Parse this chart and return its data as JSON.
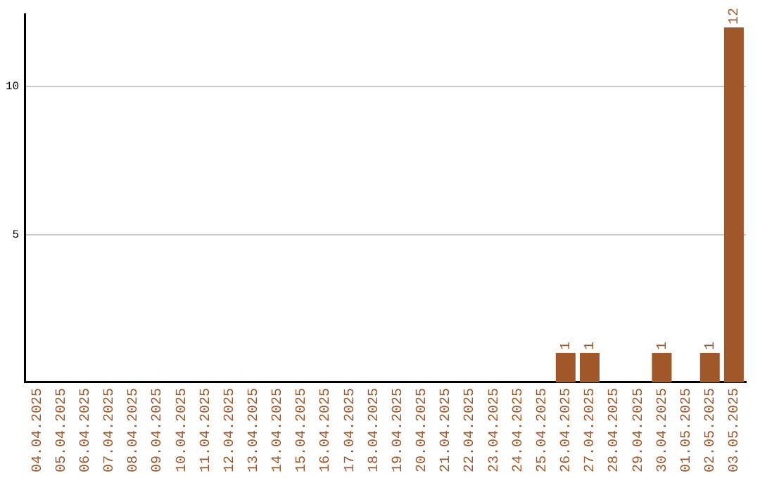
{
  "chart_data": {
    "type": "bar",
    "categories": [
      "04.04.2025",
      "05.04.2025",
      "06.04.2025",
      "07.04.2025",
      "08.04.2025",
      "09.04.2025",
      "10.04.2025",
      "11.04.2025",
      "12.04.2025",
      "13.04.2025",
      "14.04.2025",
      "15.04.2025",
      "16.04.2025",
      "17.04.2025",
      "18.04.2025",
      "19.04.2025",
      "20.04.2025",
      "21.04.2025",
      "22.04.2025",
      "23.04.2025",
      "24.04.2025",
      "25.04.2025",
      "26.04.2025",
      "27.04.2025",
      "28.04.2025",
      "29.04.2025",
      "30.04.2025",
      "01.05.2025",
      "02.05.2025",
      "03.05.2025"
    ],
    "values": [
      0,
      0,
      0,
      0,
      0,
      0,
      0,
      0,
      0,
      0,
      0,
      0,
      0,
      0,
      0,
      0,
      0,
      0,
      0,
      0,
      0,
      0,
      1,
      1,
      0,
      0,
      1,
      0,
      1,
      12
    ],
    "value_labels": [
      null,
      null,
      null,
      null,
      null,
      null,
      null,
      null,
      null,
      null,
      null,
      null,
      null,
      null,
      null,
      null,
      null,
      null,
      null,
      null,
      null,
      null,
      "1",
      "1",
      null,
      null,
      "1",
      null,
      "1",
      "12"
    ],
    "color": "#a0572a",
    "ylim": [
      0,
      12.45
    ],
    "yticks": [
      5,
      10
    ],
    "grid": "y",
    "legend": false
  }
}
